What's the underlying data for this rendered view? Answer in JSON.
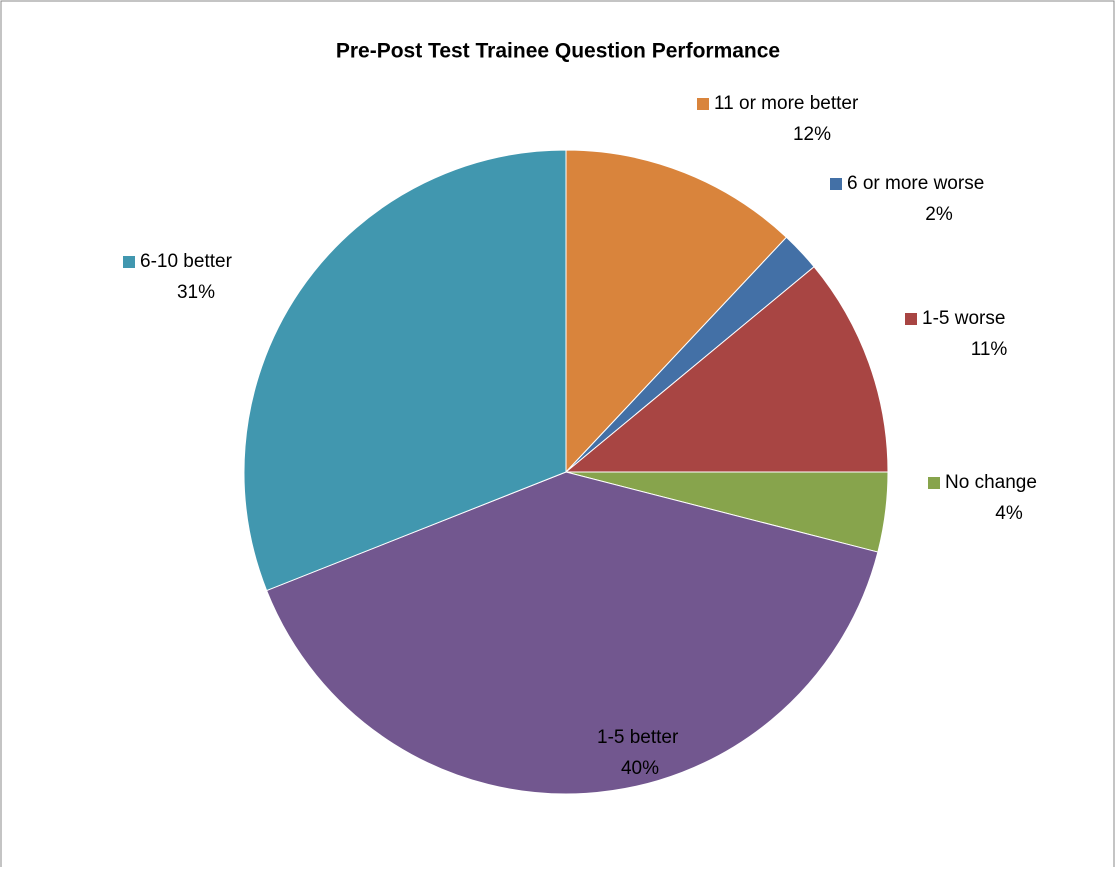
{
  "chart_data": {
    "type": "pie",
    "title": "Pre-Post Test Trainee Question Performance",
    "categories": [
      "11 or more better",
      "6 or more worse",
      "1-5 worse",
      "No change",
      "1-5 better",
      "6-10 better"
    ],
    "values": [
      12,
      2,
      11,
      4,
      40,
      31
    ],
    "value_labels": [
      "12%",
      "2%",
      "11%",
      "4%",
      "40%",
      "31%"
    ],
    "colors": [
      "#d9843c",
      "#4370a6",
      "#a84543",
      "#87a44c",
      "#72578f",
      "#4197af"
    ]
  }
}
